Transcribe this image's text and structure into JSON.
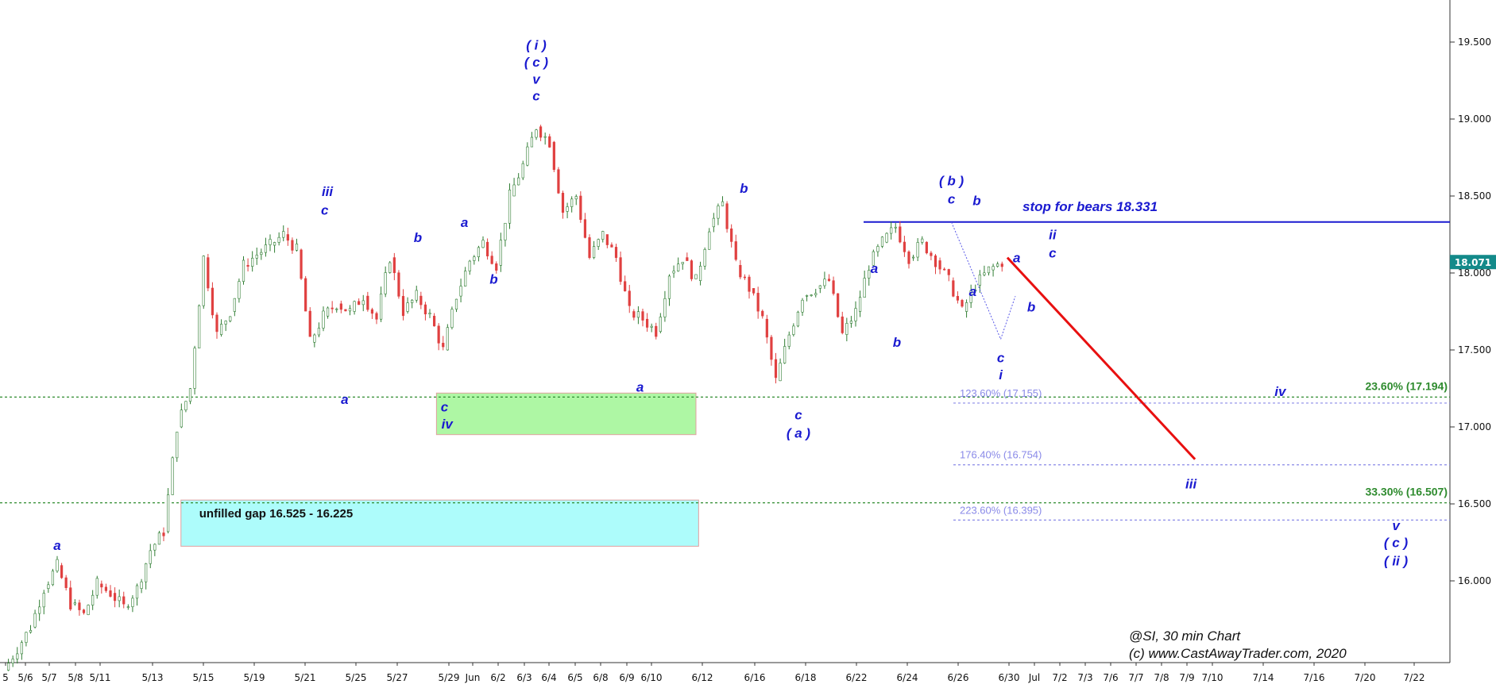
{
  "chart_data": {
    "type": "candlestick",
    "ylim": [
      15.45,
      19.75
    ],
    "y_ticks": [
      {
        "value": 19.5,
        "label": "19.500"
      },
      {
        "value": 19.0,
        "label": "19.000"
      },
      {
        "value": 18.5,
        "label": "18.500"
      },
      {
        "value": 18.0,
        "label": "18.000"
      },
      {
        "value": 17.5,
        "label": "17.500"
      },
      {
        "value": 17.0,
        "label": "17.000"
      },
      {
        "value": 16.5,
        "label": "16.500"
      },
      {
        "value": 16.0,
        "label": "16.000"
      }
    ],
    "x_ticks": [
      "5",
      "5/6",
      "5/7",
      "5/8",
      "5/11",
      "5/13",
      "5/15",
      "5/19",
      "5/21",
      "5/25",
      "5/27",
      "5/29",
      "Jun",
      "6/2",
      "6/3",
      "6/4",
      "6/5",
      "6/8",
      "6/9",
      "6/10",
      "6/12",
      "6/16",
      "6/18",
      "6/22",
      "6/24",
      "6/26",
      "6/30",
      "Jul",
      "7/2",
      "7/3",
      "7/6",
      "7/7",
      "7/8",
      "7/9",
      "7/10",
      "7/14",
      "7/16",
      "7/20",
      "7/22"
    ],
    "last_price": {
      "value": 18.071,
      "label": "18.071"
    },
    "path": [
      [
        0,
        15.42
      ],
      [
        2,
        15.7
      ],
      [
        3,
        15.95
      ],
      [
        4,
        16.1
      ],
      [
        5,
        15.85
      ],
      [
        6,
        15.78
      ],
      [
        7,
        15.98
      ],
      [
        8,
        15.92
      ],
      [
        9,
        15.83
      ],
      [
        10,
        15.95
      ],
      [
        11,
        16.2
      ],
      [
        12,
        16.32
      ],
      [
        13,
        17.0
      ],
      [
        14,
        17.25
      ],
      [
        15,
        18.1
      ],
      [
        16,
        17.6
      ],
      [
        17,
        17.75
      ],
      [
        18,
        18.05
      ],
      [
        19,
        18.12
      ],
      [
        20,
        18.18
      ],
      [
        21,
        18.25
      ],
      [
        22,
        18.15
      ],
      [
        23,
        17.55
      ],
      [
        24,
        17.72
      ],
      [
        25,
        17.8
      ],
      [
        26,
        17.75
      ],
      [
        27,
        17.85
      ],
      [
        28,
        17.7
      ],
      [
        29,
        18.1
      ],
      [
        30,
        17.75
      ],
      [
        31,
        17.85
      ],
      [
        32,
        17.72
      ],
      [
        33,
        17.5
      ],
      [
        34,
        17.85
      ],
      [
        35,
        18.08
      ],
      [
        36,
        18.2
      ],
      [
        37,
        18.05
      ],
      [
        38,
        18.5
      ],
      [
        39,
        18.7
      ],
      [
        40,
        18.95
      ],
      [
        41,
        18.85
      ],
      [
        42,
        18.4
      ],
      [
        43,
        18.5
      ],
      [
        44,
        18.1
      ],
      [
        45,
        18.25
      ],
      [
        46,
        18.1
      ],
      [
        47,
        17.75
      ],
      [
        48,
        17.7
      ],
      [
        49,
        17.62
      ],
      [
        50,
        18.0
      ],
      [
        51,
        18.1
      ],
      [
        52,
        17.95
      ],
      [
        53,
        18.3
      ],
      [
        54,
        18.45
      ],
      [
        55,
        18.05
      ],
      [
        56,
        17.9
      ],
      [
        57,
        17.7
      ],
      [
        58,
        17.3
      ],
      [
        59,
        17.6
      ],
      [
        60,
        17.85
      ],
      [
        61,
        17.9
      ],
      [
        62,
        17.95
      ],
      [
        63,
        17.6
      ],
      [
        64,
        17.75
      ],
      [
        65,
        18.05
      ],
      [
        66,
        18.2
      ],
      [
        67,
        18.3
      ],
      [
        68,
        18.1
      ],
      [
        69,
        18.2
      ],
      [
        70,
        18.08
      ],
      [
        71,
        17.95
      ],
      [
        72,
        17.75
      ],
      [
        73,
        17.92
      ],
      [
        74,
        18.02
      ],
      [
        75,
        18.07
      ]
    ],
    "levels": [
      {
        "value": 18.331,
        "label": "stop for bears 18.331",
        "style": "solid",
        "color": "#1a1ad0"
      },
      {
        "value": 17.194,
        "label": "23.60% (17.194)",
        "style": "dotted",
        "color": "#2e8b2e"
      },
      {
        "value": 16.507,
        "label": "33.30% (16.507)",
        "style": "dotted",
        "color": "#2e8b2e"
      },
      {
        "value": 17.155,
        "label": "123.60% (17.155)",
        "style": "dotted",
        "color": "#8a8ae8"
      },
      {
        "value": 16.754,
        "label": "176.40% (16.754)",
        "style": "dotted",
        "color": "#8a8ae8"
      },
      {
        "value": 16.395,
        "label": "223.60% (16.395)",
        "style": "dotted",
        "color": "#8a8ae8"
      }
    ],
    "zones": [
      {
        "label": "",
        "low": 16.95,
        "high": 17.22,
        "from": 32.5,
        "to": 52,
        "fill": "#aef7a4"
      },
      {
        "label": "unfilled gap 16.525 - 16.225",
        "low": 16.225,
        "high": 16.525,
        "from": 13.3,
        "to": 52.2,
        "fill": "#adfcfb"
      }
    ],
    "projection": {
      "from": [
        75.4,
        18.1
      ],
      "to": [
        89.5,
        16.79
      ],
      "color": "#e81010"
    },
    "wave_labels": [
      {
        "text": "a",
        "x": 4,
        "y": 16.2
      },
      {
        "text": "iii",
        "x": 24.3,
        "y": 18.5
      },
      {
        "text": "c",
        "x": 24.1,
        "y": 18.38
      },
      {
        "text": "a",
        "x": 25.6,
        "y": 17.15
      },
      {
        "text": "b",
        "x": 31.1,
        "y": 18.2
      },
      {
        "text": "c",
        "x": 33.1,
        "y": 17.1
      },
      {
        "text": "iv",
        "x": 33.3,
        "y": 16.99
      },
      {
        "text": "a",
        "x": 34.6,
        "y": 18.3
      },
      {
        "text": "b",
        "x": 36.8,
        "y": 17.93
      },
      {
        "text": "( i )",
        "x": 40,
        "y": 19.45
      },
      {
        "text": "( c )",
        "x": 40,
        "y": 19.34
      },
      {
        "text": "v",
        "x": 40,
        "y": 19.23
      },
      {
        "text": "c",
        "x": 40,
        "y": 19.12
      },
      {
        "text": "a",
        "x": 47.8,
        "y": 17.23
      },
      {
        "text": "b",
        "x": 55.6,
        "y": 18.52
      },
      {
        "text": "c",
        "x": 59.7,
        "y": 17.05
      },
      {
        "text": "( a )",
        "x": 59.7,
        "y": 16.93
      },
      {
        "text": "a",
        "x": 65.4,
        "y": 18.0
      },
      {
        "text": "b",
        "x": 67.1,
        "y": 17.52
      },
      {
        "text": "( b )",
        "x": 71.2,
        "y": 18.57
      },
      {
        "text": "c",
        "x": 71.2,
        "y": 18.45
      },
      {
        "text": "b",
        "x": 73.1,
        "y": 18.44
      },
      {
        "text": "a",
        "x": 72.8,
        "y": 17.85
      },
      {
        "text": "c",
        "x": 74.9,
        "y": 17.42
      },
      {
        "text": "i",
        "x": 74.9,
        "y": 17.31
      },
      {
        "text": "a",
        "x": 76.1,
        "y": 18.07
      },
      {
        "text": "b",
        "x": 77.2,
        "y": 17.75
      },
      {
        "text": "ii",
        "x": 78.8,
        "y": 18.22
      },
      {
        "text": "c",
        "x": 78.8,
        "y": 18.1
      },
      {
        "text": "iv",
        "x": 95.9,
        "y": 17.2
      },
      {
        "text": "iii",
        "x": 89.2,
        "y": 16.6
      },
      {
        "text": "v",
        "x": 104.6,
        "y": 16.33
      },
      {
        "text": "( c )",
        "x": 104.6,
        "y": 16.22
      },
      {
        "text": "( ii )",
        "x": 104.6,
        "y": 16.1
      }
    ],
    "footer_lines": [
      "@SI, 30 min Chart",
      "(c) www.CastAwayTrader.com, 2020"
    ]
  }
}
